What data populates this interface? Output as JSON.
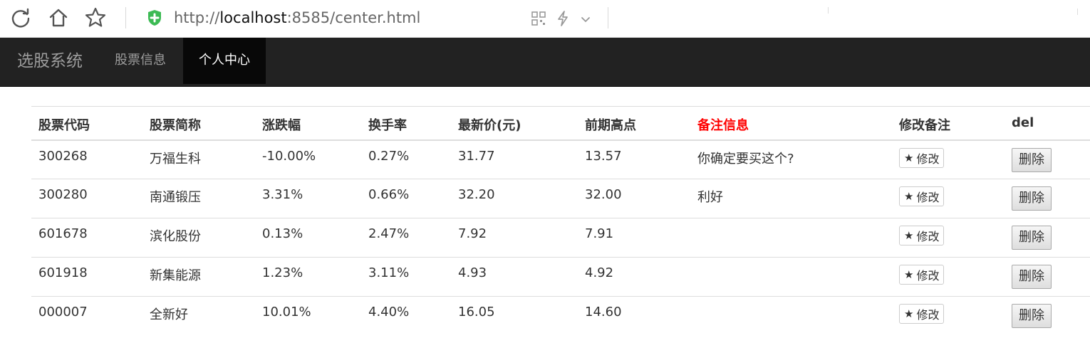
{
  "browser": {
    "url_prefix": "http://",
    "url_host": "localhost",
    "url_rest": ":8585/center.html"
  },
  "navbar": {
    "brand": "选股系统",
    "items": [
      {
        "label": "股票信息",
        "active": false
      },
      {
        "label": "个人中心",
        "active": true
      }
    ]
  },
  "table": {
    "headers": [
      "股票代码",
      "股票简称",
      "涨跌幅",
      "换手率",
      "最新价(元)",
      "前期高点",
      "备注信息",
      "修改备注",
      "del"
    ],
    "highlight_header_color": "#ff0000",
    "edit_label": "修改",
    "delete_label": "删除",
    "rows": [
      [
        "300268",
        "万福生科",
        "-10.00%",
        "0.27%",
        "31.77",
        "13.57",
        "你确定要买这个?"
      ],
      [
        "300280",
        "南通锻压",
        "3.31%",
        "0.66%",
        "32.20",
        "32.00",
        "利好"
      ],
      [
        "601678",
        "滨化股份",
        "0.13%",
        "2.47%",
        "7.92",
        "7.91",
        ""
      ],
      [
        "601918",
        "新集能源",
        "1.23%",
        "3.11%",
        "4.93",
        "4.92",
        ""
      ],
      [
        "000007",
        "全新好",
        "10.01%",
        "4.40%",
        "16.05",
        "14.60",
        ""
      ]
    ]
  },
  "colors": {
    "navbar_bg": "#222222",
    "navbar_active_bg": "#080808",
    "shield_green": "#3cba54"
  }
}
